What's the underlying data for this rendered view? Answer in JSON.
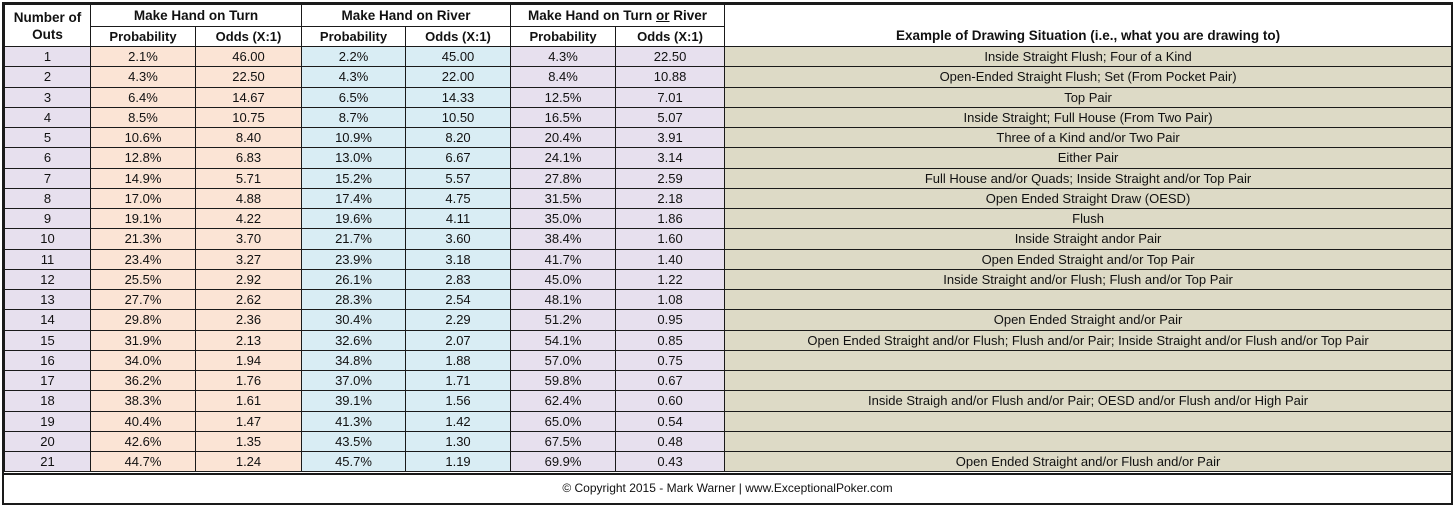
{
  "headers": {
    "outs_line1": "Number of",
    "outs_line2": "Outs",
    "turn": "Make Hand on Turn",
    "river": "Make Hand on River",
    "both_prefix": "Make Hand on Turn ",
    "both_or": "or",
    "both_suffix": " River",
    "probability": "Probability",
    "odds": "Odds (X:1)",
    "example": "Example of Drawing Situation (i.e., what you are drawing to)"
  },
  "rows": [
    {
      "outs": "1",
      "turn_p": "2.1%",
      "turn_o": "46.00",
      "river_p": "2.2%",
      "river_o": "45.00",
      "both_p": "4.3%",
      "both_o": "22.50",
      "example": "Inside Straight Flush; Four of a Kind"
    },
    {
      "outs": "2",
      "turn_p": "4.3%",
      "turn_o": "22.50",
      "river_p": "4.3%",
      "river_o": "22.00",
      "both_p": "8.4%",
      "both_o": "10.88",
      "example": "Open-Ended Straight Flush; Set (From Pocket Pair)"
    },
    {
      "outs": "3",
      "turn_p": "6.4%",
      "turn_o": "14.67",
      "river_p": "6.5%",
      "river_o": "14.33",
      "both_p": "12.5%",
      "both_o": "7.01",
      "example": "Top Pair"
    },
    {
      "outs": "4",
      "turn_p": "8.5%",
      "turn_o": "10.75",
      "river_p": "8.7%",
      "river_o": "10.50",
      "both_p": "16.5%",
      "both_o": "5.07",
      "example": "Inside Straight; Full House (From Two Pair)"
    },
    {
      "outs": "5",
      "turn_p": "10.6%",
      "turn_o": "8.40",
      "river_p": "10.9%",
      "river_o": "8.20",
      "both_p": "20.4%",
      "both_o": "3.91",
      "example": "Three of a Kind and/or Two Pair"
    },
    {
      "outs": "6",
      "turn_p": "12.8%",
      "turn_o": "6.83",
      "river_p": "13.0%",
      "river_o": "6.67",
      "both_p": "24.1%",
      "both_o": "3.14",
      "example": "Either Pair"
    },
    {
      "outs": "7",
      "turn_p": "14.9%",
      "turn_o": "5.71",
      "river_p": "15.2%",
      "river_o": "5.57",
      "both_p": "27.8%",
      "both_o": "2.59",
      "example": "Full House and/or Quads; Inside Straight and/or Top Pair"
    },
    {
      "outs": "8",
      "turn_p": "17.0%",
      "turn_o": "4.88",
      "river_p": "17.4%",
      "river_o": "4.75",
      "both_p": "31.5%",
      "both_o": "2.18",
      "example": "Open Ended Straight Draw (OESD)"
    },
    {
      "outs": "9",
      "turn_p": "19.1%",
      "turn_o": "4.22",
      "river_p": "19.6%",
      "river_o": "4.11",
      "both_p": "35.0%",
      "both_o": "1.86",
      "example": "Flush"
    },
    {
      "outs": "10",
      "turn_p": "21.3%",
      "turn_o": "3.70",
      "river_p": "21.7%",
      "river_o": "3.60",
      "both_p": "38.4%",
      "both_o": "1.60",
      "example": "Inside Straight andor Pair"
    },
    {
      "outs": "11",
      "turn_p": "23.4%",
      "turn_o": "3.27",
      "river_p": "23.9%",
      "river_o": "3.18",
      "both_p": "41.7%",
      "both_o": "1.40",
      "example": "Open Ended Straight and/or Top Pair"
    },
    {
      "outs": "12",
      "turn_p": "25.5%",
      "turn_o": "2.92",
      "river_p": "26.1%",
      "river_o": "2.83",
      "both_p": "45.0%",
      "both_o": "1.22",
      "example": "Inside Straight and/or Flush; Flush and/or Top Pair"
    },
    {
      "outs": "13",
      "turn_p": "27.7%",
      "turn_o": "2.62",
      "river_p": "28.3%",
      "river_o": "2.54",
      "both_p": "48.1%",
      "both_o": "1.08",
      "example": ""
    },
    {
      "outs": "14",
      "turn_p": "29.8%",
      "turn_o": "2.36",
      "river_p": "30.4%",
      "river_o": "2.29",
      "both_p": "51.2%",
      "both_o": "0.95",
      "example": "Open Ended Straight and/or Pair"
    },
    {
      "outs": "15",
      "turn_p": "31.9%",
      "turn_o": "2.13",
      "river_p": "32.6%",
      "river_o": "2.07",
      "both_p": "54.1%",
      "both_o": "0.85",
      "example": "Open Ended Straight and/or Flush; Flush and/or Pair; Inside Straight and/or Flush and/or Top Pair"
    },
    {
      "outs": "16",
      "turn_p": "34.0%",
      "turn_o": "1.94",
      "river_p": "34.8%",
      "river_o": "1.88",
      "both_p": "57.0%",
      "both_o": "0.75",
      "example": ""
    },
    {
      "outs": "17",
      "turn_p": "36.2%",
      "turn_o": "1.76",
      "river_p": "37.0%",
      "river_o": "1.71",
      "both_p": "59.8%",
      "both_o": "0.67",
      "example": ""
    },
    {
      "outs": "18",
      "turn_p": "38.3%",
      "turn_o": "1.61",
      "river_p": "39.1%",
      "river_o": "1.56",
      "both_p": "62.4%",
      "both_o": "0.60",
      "example": "Inside Straigh and/or Flush and/or Pair; OESD and/or Flush and/or High Pair"
    },
    {
      "outs": "19",
      "turn_p": "40.4%",
      "turn_o": "1.47",
      "river_p": "41.3%",
      "river_o": "1.42",
      "both_p": "65.0%",
      "both_o": "0.54",
      "example": ""
    },
    {
      "outs": "20",
      "turn_p": "42.6%",
      "turn_o": "1.35",
      "river_p": "43.5%",
      "river_o": "1.30",
      "both_p": "67.5%",
      "both_o": "0.48",
      "example": ""
    },
    {
      "outs": "21",
      "turn_p": "44.7%",
      "turn_o": "1.24",
      "river_p": "45.7%",
      "river_o": "1.19",
      "both_p": "69.9%",
      "both_o": "0.43",
      "example": "Open Ended Straight and/or Flush and/or Pair"
    }
  ],
  "footer": "© Copyright 2015 - Mark Warner | www.ExceptionalPoker.com",
  "colors": {
    "outs_bg": "#e7e0ee",
    "turn_bg": "#fbe4d5",
    "river_bg": "#d9edf4",
    "both_bg": "#e7e0ee",
    "example_bg": "#dddac6"
  }
}
